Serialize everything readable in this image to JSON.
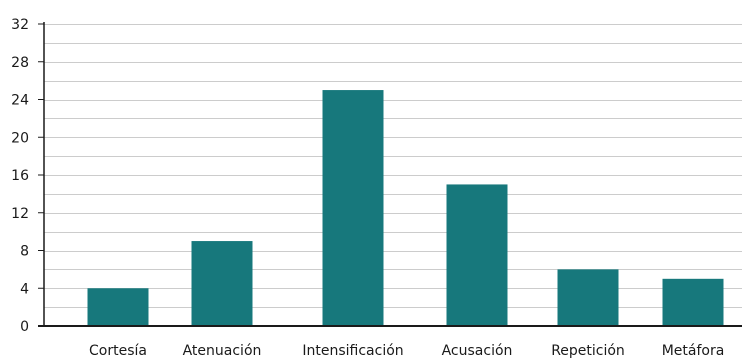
{
  "chart_data": {
    "type": "bar",
    "title": "",
    "xlabel": "",
    "ylabel": "",
    "categories": [
      "Cortesía",
      "Atenuación",
      "Intensificación",
      "Acusación",
      "Repetición",
      "Metáfora"
    ],
    "values": [
      4,
      9,
      25,
      15,
      6,
      5
    ],
    "ylim": [
      0,
      32
    ],
    "yticks": [
      "0",
      "4",
      "8",
      "12",
      "16",
      "20",
      "24",
      "28",
      "32"
    ],
    "grid": "horizontal, every 2 units",
    "legend": "none",
    "bar_color": "#17787c",
    "grid_color": "#cccccc",
    "axis_color": "#1a1a1a"
  }
}
